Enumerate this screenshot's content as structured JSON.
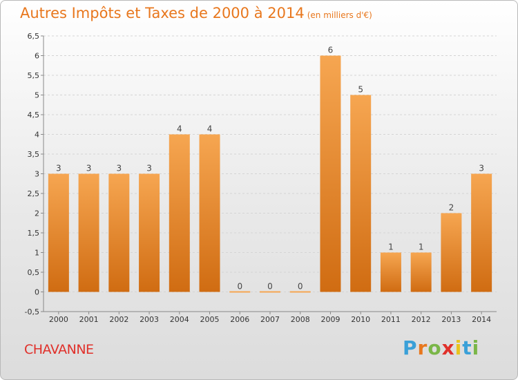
{
  "header": {
    "title": "Autres Impôts et Taxes de 2000 à 2014",
    "subtitle": "(en milliers d'€)"
  },
  "footer": {
    "commune": "CHAVANNE",
    "logo_text": "Proxiti"
  },
  "colors": {
    "title": "#e8771d",
    "commune": "#e0302a",
    "bar_top": "#f6a651",
    "bar_bottom": "#d06c12",
    "logo": [
      "#3aa0d8",
      "#e8771d",
      "#7ab648",
      "#e0302a",
      "#e8c31d",
      "#3aa0d8",
      "#7ab648"
    ]
  },
  "chart_data": {
    "type": "bar",
    "title": "Autres Impôts et Taxes de 2000 à 2014",
    "subtitle": "(en milliers d'€)",
    "categories": [
      "2000",
      "2001",
      "2002",
      "2003",
      "2004",
      "2005",
      "2006",
      "2007",
      "2008",
      "2009",
      "2010",
      "2011",
      "2012",
      "2013",
      "2014"
    ],
    "values": [
      3,
      3,
      3,
      3,
      4,
      4,
      0,
      0,
      0,
      6,
      5,
      1,
      1,
      2,
      3
    ],
    "data_labels": [
      "3",
      "3",
      "3",
      "3",
      "4",
      "4",
      "0",
      "0",
      "0",
      "6",
      "5",
      "1",
      "1",
      "2",
      "3"
    ],
    "ylim": [
      -0.5,
      6.5
    ],
    "yticks": [
      "-0,5",
      "0",
      "0,5",
      "1",
      "1,5",
      "2",
      "2,5",
      "3",
      "3,5",
      "4",
      "4,5",
      "5",
      "5,5",
      "6",
      "6,5"
    ],
    "grid": true,
    "xlabel": "",
    "ylabel": ""
  }
}
